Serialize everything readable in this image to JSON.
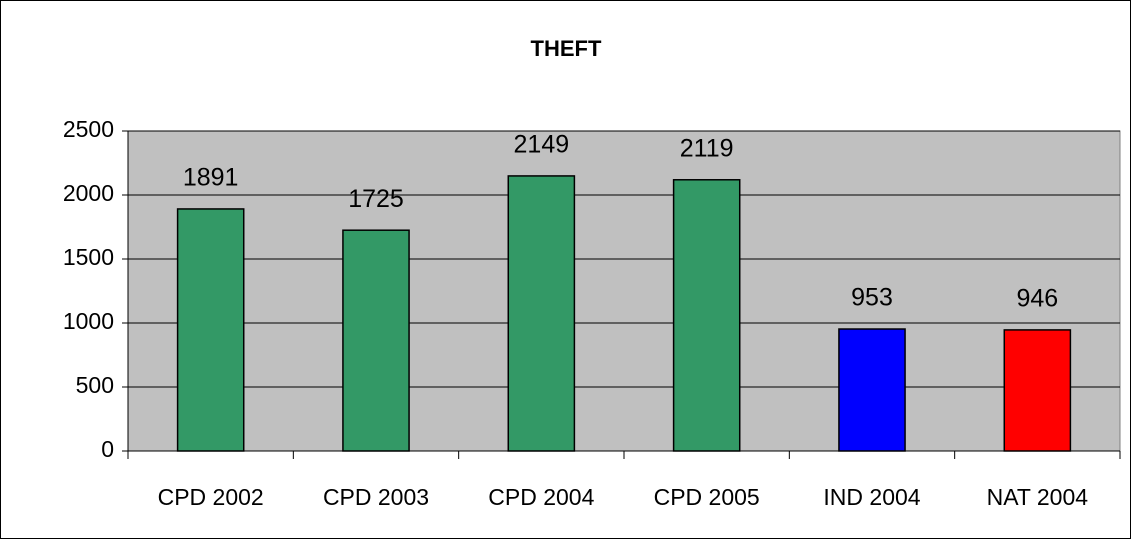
{
  "chart_data": {
    "type": "bar",
    "title": "THEFT",
    "categories": [
      "CPD 2002",
      "CPD 2003",
      "CPD 2004",
      "CPD 2005",
      "IND 2004",
      "NAT 2004"
    ],
    "values": [
      1891,
      1725,
      2149,
      2119,
      953,
      946
    ],
    "colors": [
      "#339966",
      "#339966",
      "#339966",
      "#339966",
      "#0000ff",
      "#ff0000"
    ],
    "ylim": [
      0,
      2500
    ],
    "yticks": [
      0,
      500,
      1000,
      1500,
      2000,
      2500
    ],
    "grid": true
  }
}
